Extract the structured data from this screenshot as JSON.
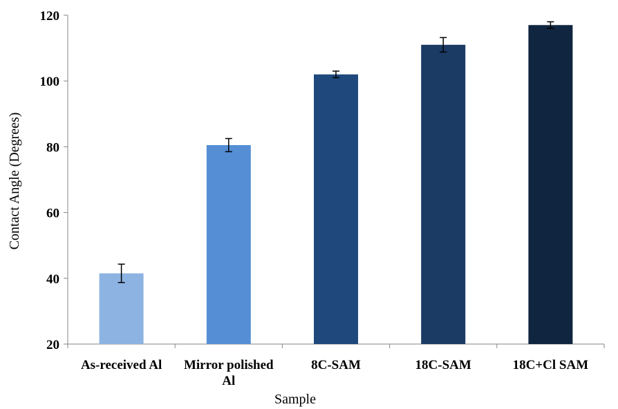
{
  "chart_data": {
    "type": "bar",
    "title": "",
    "xlabel": "Sample",
    "ylabel": "Contact Angle (Degrees)",
    "ylim": [
      20,
      120
    ],
    "yticks": [
      20,
      40,
      60,
      80,
      100,
      120
    ],
    "grid": false,
    "legend": "none",
    "categories": [
      [
        "As-received Al"
      ],
      [
        "Mirror polished",
        "Al"
      ],
      [
        "8C-SAM"
      ],
      [
        "18C-SAM"
      ],
      [
        "18C+Cl SAM"
      ]
    ],
    "values": [
      41.5,
      80.5,
      102,
      111,
      117
    ],
    "errors": [
      2.8,
      2.0,
      1.0,
      2.2,
      1.0
    ],
    "colors": [
      "#8db3e2",
      "#558ed5",
      "#1f497d",
      "#1b3a64",
      "#10253f"
    ]
  }
}
